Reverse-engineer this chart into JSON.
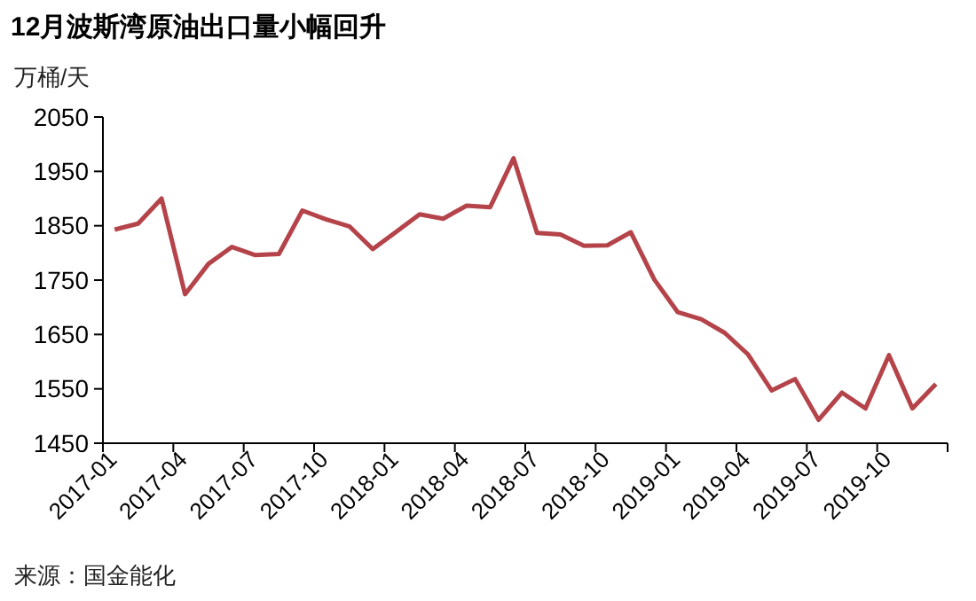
{
  "chart_data": {
    "type": "line",
    "title": "12月波斯湾原油出口量小幅回升",
    "ylabel": "万桶/天",
    "categories": [
      "2017-01",
      null,
      null,
      "2017-04",
      null,
      null,
      "2017-07",
      null,
      null,
      "2017-10",
      null,
      null,
      "2018-01",
      null,
      null,
      "2018-04",
      null,
      null,
      "2018-07",
      null,
      null,
      "2018-10",
      null,
      null,
      "2019-01",
      null,
      null,
      "2019-04",
      null,
      null,
      "2019-07",
      null,
      null,
      "2019-10",
      null,
      null
    ],
    "series": [
      {
        "color": "#b5434a",
        "values": [
          1843,
          1854,
          1900,
          1724,
          1780,
          1811,
          1796,
          1798,
          1878,
          1862,
          1849,
          1807,
          1839,
          1871,
          1863,
          1887,
          1884,
          1974,
          1837,
          1834,
          1813,
          1814,
          1838,
          1751,
          1691,
          1678,
          1653,
          1613,
          1547,
          1568,
          1493,
          1543,
          1514,
          1612,
          1514,
          1559
        ]
      }
    ],
    "ylim": [
      1450,
      2050
    ],
    "yticks": [
      1450,
      1550,
      1650,
      1750,
      1850,
      1950,
      2050
    ],
    "grid": false,
    "marker": "none",
    "line_style": "solid",
    "annotations": [
      "来源：国金能化"
    ]
  }
}
